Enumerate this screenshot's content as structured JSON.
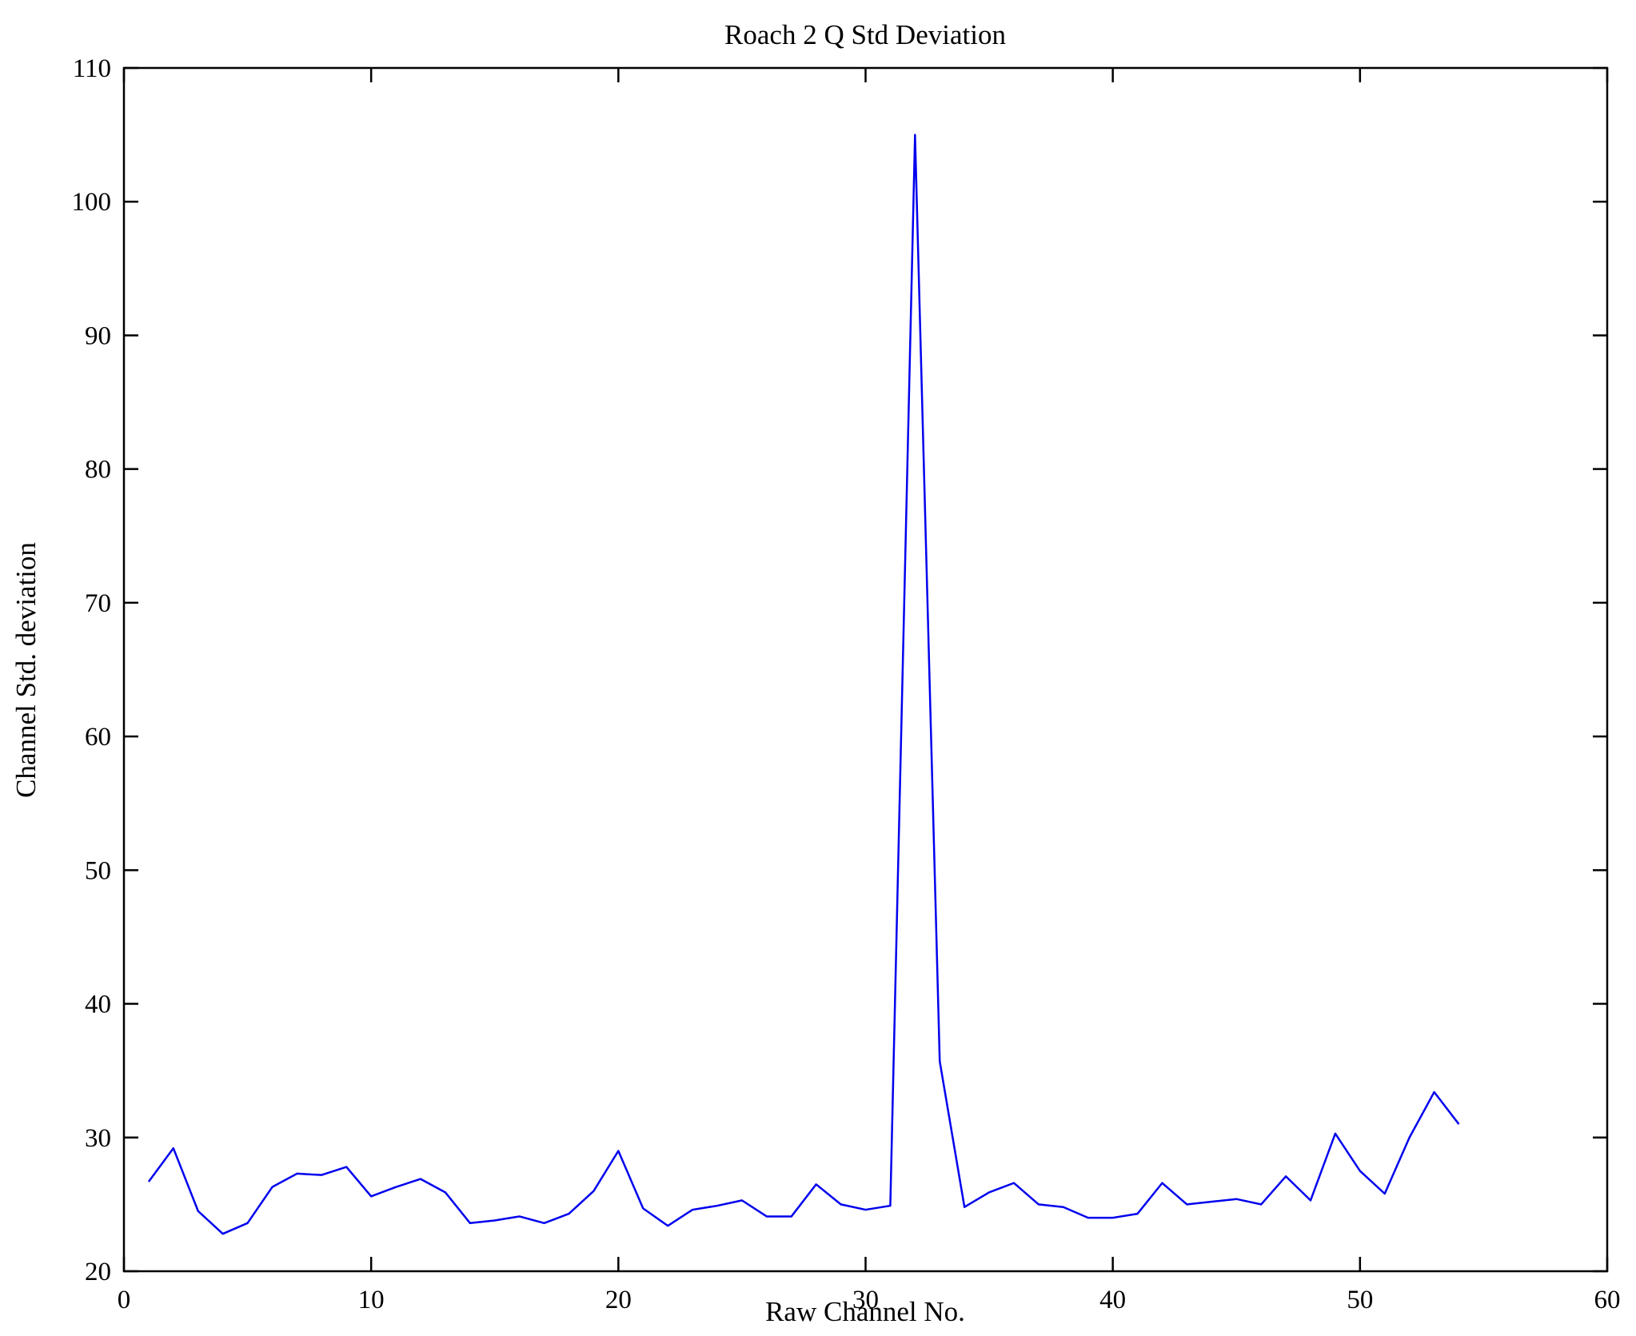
{
  "chart_data": {
    "type": "line",
    "title": "Roach 2 Q Std Deviation",
    "xlabel": "Raw Channel No.",
    "ylabel": "Channel Std. deviation",
    "xlim": [
      0,
      60
    ],
    "ylim": [
      20,
      110
    ],
    "xticks": [
      0,
      10,
      20,
      30,
      40,
      50,
      60
    ],
    "yticks": [
      20,
      30,
      40,
      50,
      60,
      70,
      80,
      90,
      100,
      110
    ],
    "grid": false,
    "legend": "none",
    "line_color": "#0000EE",
    "series_name": "Channel Std. deviation",
    "x": [
      1,
      2,
      3,
      4,
      5,
      6,
      7,
      8,
      9,
      10,
      11,
      12,
      13,
      14,
      15,
      16,
      17,
      18,
      19,
      20,
      21,
      22,
      23,
      24,
      25,
      26,
      27,
      28,
      29,
      30,
      31,
      32,
      33,
      34,
      35,
      36,
      37,
      38,
      39,
      40,
      41,
      42,
      43,
      44,
      45,
      46,
      47,
      48,
      49,
      50,
      51,
      52,
      53,
      54
    ],
    "values": [
      26.7,
      29.2,
      24.5,
      22.8,
      23.6,
      26.3,
      27.3,
      27.2,
      27.8,
      25.6,
      26.3,
      26.9,
      25.9,
      23.6,
      23.8,
      24.1,
      23.6,
      24.3,
      26.0,
      29.0,
      24.7,
      23.4,
      24.6,
      24.9,
      25.3,
      24.1,
      24.1,
      26.5,
      25.0,
      24.6,
      24.9,
      105.0,
      35.7,
      24.8,
      25.9,
      26.6,
      25.0,
      24.8,
      24.0,
      24.0,
      24.3,
      26.6,
      25.0,
      25.2,
      25.4,
      25.0,
      27.1,
      25.3,
      30.3,
      27.5,
      25.8,
      30.0,
      33.4,
      31.0
    ]
  }
}
